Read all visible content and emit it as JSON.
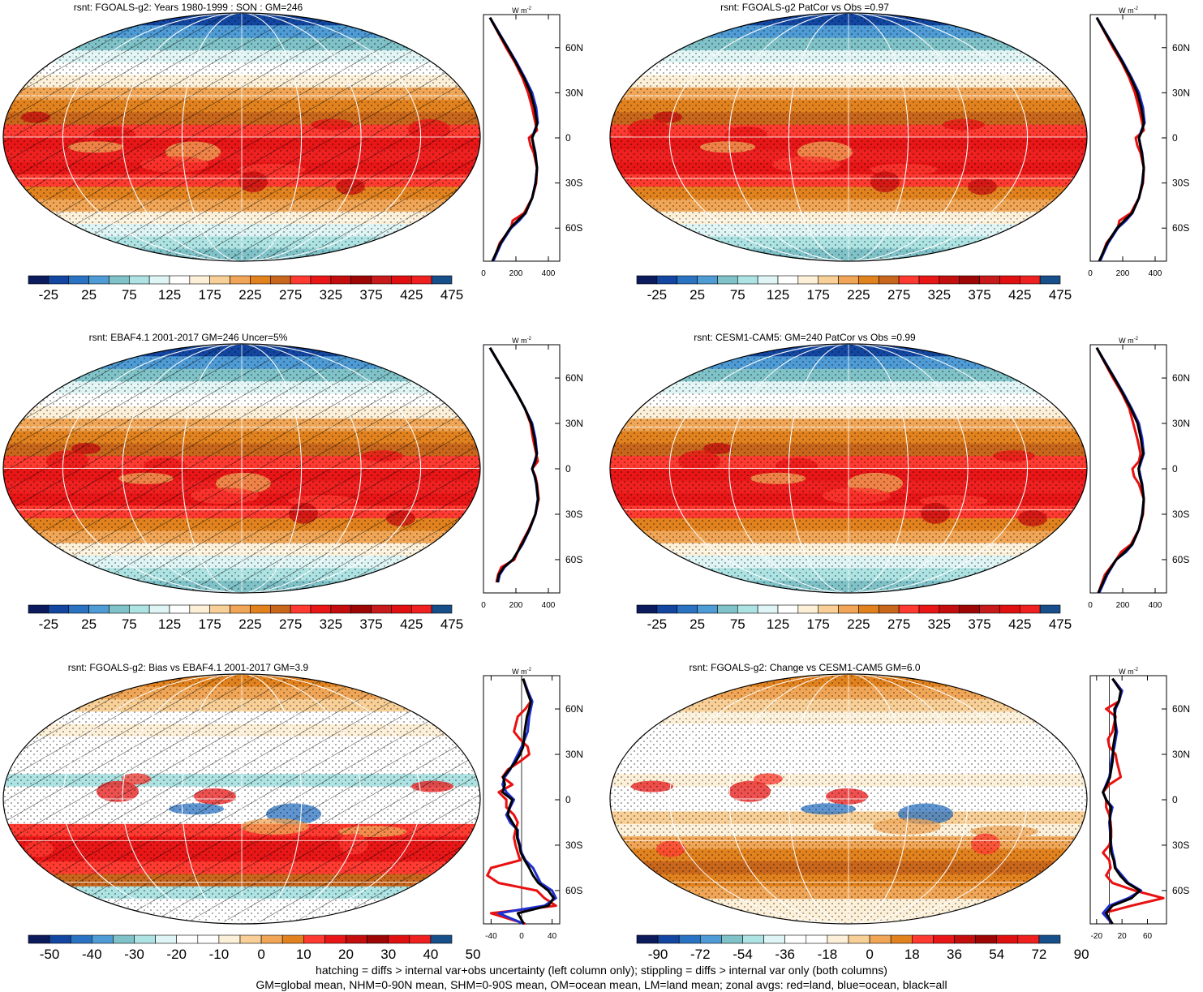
{
  "footnote": {
    "line1": "hatching = diffs > internal var+obs uncertainty (left column only); stippling = diffs > internal var only (both columns)",
    "line2": "GM=global mean, NHM=0-90N mean, SHM=0-90S mean, OM=ocean mean, LM=land mean; zonal avgs: red=land, blue=ocean, black=all"
  },
  "colors": {
    "land": "#e81010",
    "ocean": "#1f2fd0",
    "all": "#000000",
    "abs_palette": [
      "#0c1b5c",
      "#1346a0",
      "#2a72c2",
      "#4e9bd6",
      "#7fc2c8",
      "#aee3e3",
      "#dff4f4",
      "#ffffff",
      "#fdf0d8",
      "#f8cf96",
      "#f0a656",
      "#e1821e",
      "#c8661c",
      "#ff3a30",
      "#e81616",
      "#c40d0d",
      "#9e0606",
      "#c81a1a",
      "#e01010",
      "#ef2020",
      "#174f8a"
    ],
    "bias_palette": [
      "#0c1b5c",
      "#1346a0",
      "#2a72c2",
      "#4e9bd6",
      "#7fc2c8",
      "#aee3e3",
      "#dff4f4",
      "#ffffff",
      "#ffffff",
      "#fdf0d8",
      "#f8cf96",
      "#f0a656",
      "#e1821e",
      "#ff3a30",
      "#e81616",
      "#c40d0d",
      "#9e0606",
      "#e01010",
      "#ef2020",
      "#174f8a"
    ],
    "change_palette": [
      "#0c1b5c",
      "#1346a0",
      "#2a72c2",
      "#4e9bd6",
      "#7fc2c8",
      "#aee3e3",
      "#dff4f4",
      "#ffffff",
      "#ffffff",
      "#fdf0d8",
      "#f8cf96",
      "#f0a656",
      "#e1821e",
      "#ff3a30",
      "#e81616",
      "#c40d0d",
      "#9e0606",
      "#e01010",
      "#ef2020",
      "#174f8a"
    ]
  },
  "chart_data": [
    {
      "type": "heatmap",
      "title": "rsnt: FGOALS-g2: Years 1980-1999 : SON : GM=246",
      "field": "absolute",
      "hatching": true,
      "colorbar_ticks": [
        "-25",
        "25",
        "75",
        "125",
        "175",
        "225",
        "275",
        "325",
        "375",
        "425",
        "475"
      ],
      "zonal": {
        "units": "W m",
        "units_exp": "-2",
        "x_ticks": [
          "0",
          "200",
          "400"
        ],
        "xlim": [
          0,
          470
        ],
        "y_ticks": [
          "60N",
          "30N",
          "0",
          "30S",
          "60S"
        ],
        "ylim": [
          -82,
          82
        ],
        "lat": [
          80,
          70,
          60,
          50,
          40,
          30,
          20,
          10,
          5,
          0,
          -5,
          -10,
          -20,
          -30,
          -40,
          -50,
          -55,
          -60,
          -70,
          -82
        ],
        "series": [
          {
            "role": "land",
            "values": [
              40,
              90,
              140,
              195,
              240,
              275,
              300,
              320,
              330,
              280,
              290,
              310,
              330,
              325,
              300,
              250,
              180,
              170,
              100,
              60
            ]
          },
          {
            "role": "ocean",
            "values": [
              40,
              95,
              150,
              205,
              255,
              300,
              325,
              335,
              315,
              300,
              310,
              320,
              330,
              320,
              300,
              260,
              220,
              170,
              110,
              60
            ]
          },
          {
            "role": "all",
            "values": [
              40,
              92,
              148,
              200,
              250,
              290,
              315,
              330,
              320,
              300,
              308,
              318,
              330,
              322,
              300,
              258,
              210,
              165,
              105,
              55
            ]
          }
        ]
      }
    },
    {
      "type": "heatmap",
      "title": "rsnt: FGOALS-g2 PatCor vs Obs =0.97",
      "field": "absolute",
      "hatching": false,
      "colorbar_ticks": [
        "-25",
        "25",
        "75",
        "125",
        "175",
        "225",
        "275",
        "325",
        "375",
        "425",
        "475"
      ],
      "zonal": {
        "units": "W m",
        "units_exp": "-2",
        "x_ticks": [
          "0",
          "200",
          "400"
        ],
        "xlim": [
          0,
          470
        ],
        "y_ticks": [
          "60N",
          "30N",
          "0",
          "30S",
          "60S"
        ],
        "ylim": [
          -82,
          82
        ],
        "lat": [
          80,
          70,
          60,
          50,
          40,
          30,
          20,
          10,
          5,
          0,
          -5,
          -10,
          -20,
          -30,
          -40,
          -50,
          -55,
          -60,
          -70,
          -82
        ],
        "series": [
          {
            "role": "land",
            "values": [
              40,
              90,
              140,
              195,
              240,
              275,
              300,
              320,
              330,
              280,
              290,
              310,
              330,
              325,
              300,
              250,
              180,
              170,
              100,
              60
            ]
          },
          {
            "role": "ocean",
            "values": [
              40,
              95,
              150,
              205,
              255,
              300,
              325,
              335,
              315,
              300,
              310,
              320,
              330,
              320,
              300,
              260,
              220,
              170,
              110,
              60
            ]
          },
          {
            "role": "all",
            "values": [
              40,
              92,
              148,
              200,
              250,
              290,
              315,
              330,
              320,
              300,
              308,
              318,
              330,
              322,
              300,
              258,
              210,
              165,
              105,
              55
            ]
          }
        ]
      }
    },
    {
      "type": "heatmap",
      "title": "rsnt: EBAF4.1 2001-2017 GM=246 Uncer=5%",
      "field": "absolute",
      "hatching": true,
      "colorbar_ticks": [
        "-25",
        "25",
        "75",
        "125",
        "175",
        "225",
        "275",
        "325",
        "375",
        "425",
        "475"
      ],
      "zonal": {
        "units": "W m",
        "units_exp": "-2",
        "x_ticks": [
          "0",
          "200",
          "400"
        ],
        "xlim": [
          0,
          470
        ],
        "y_ticks": [
          "60N",
          "30N",
          "0",
          "30S",
          "60S"
        ],
        "ylim": [
          -82,
          82
        ],
        "lat": [
          80,
          70,
          60,
          50,
          40,
          30,
          20,
          10,
          5,
          0,
          -5,
          -10,
          -20,
          -30,
          -40,
          -50,
          -60,
          -65,
          -70,
          -75
        ],
        "series": [
          {
            "role": "land",
            "values": [
              40,
              95,
              150,
              205,
              255,
              290,
              305,
              325,
              335,
              300,
              320,
              330,
              340,
              320,
              280,
              230,
              190,
              110,
              90,
              80
            ]
          },
          {
            "role": "ocean",
            "values": [
              40,
              95,
              150,
              205,
              255,
              300,
              320,
              330,
              315,
              300,
              315,
              325,
              335,
              320,
              285,
              240,
              180,
              130,
              100,
              90
            ]
          },
          {
            "role": "all",
            "values": [
              40,
              95,
              150,
              205,
              255,
              295,
              315,
              328,
              320,
              300,
              317,
              327,
              337,
              320,
              283,
              236,
              182,
              125,
              95,
              85
            ]
          }
        ]
      }
    },
    {
      "type": "heatmap",
      "title": "rsnt: CESM1-CAM5: GM=240 PatCor vs Obs =0.99",
      "field": "absolute",
      "hatching": false,
      "colorbar_ticks": [
        "-25",
        "25",
        "75",
        "125",
        "175",
        "225",
        "275",
        "325",
        "375",
        "425",
        "475"
      ],
      "zonal": {
        "units": "W m",
        "units_exp": "-2",
        "x_ticks": [
          "0",
          "200",
          "400"
        ],
        "xlim": [
          0,
          470
        ],
        "y_ticks": [
          "60N",
          "30N",
          "0",
          "30S",
          "60S"
        ],
        "ylim": [
          -82,
          82
        ],
        "lat": [
          80,
          70,
          60,
          50,
          40,
          30,
          20,
          10,
          5,
          0,
          -5,
          -10,
          -20,
          -30,
          -40,
          -50,
          -55,
          -60,
          -70,
          -82
        ],
        "series": [
          {
            "role": "land",
            "values": [
              40,
              90,
              140,
              195,
              240,
              265,
              290,
              310,
              300,
              260,
              270,
              300,
              330,
              325,
              300,
              250,
              190,
              160,
              90,
              50
            ]
          },
          {
            "role": "ocean",
            "values": [
              40,
              95,
              150,
              205,
              255,
              300,
              320,
              330,
              315,
              300,
              310,
              320,
              330,
              320,
              300,
              260,
              220,
              160,
              105,
              55
            ]
          },
          {
            "role": "all",
            "values": [
              40,
              92,
              148,
              200,
              250,
              292,
              312,
              326,
              310,
              298,
              305,
              318,
              330,
              322,
              300,
              258,
              212,
              160,
              100,
              50
            ]
          }
        ]
      }
    },
    {
      "type": "heatmap",
      "title": "rsnt: FGOALS-g2: Bias vs EBAF4.1 2001-2017  GM=3.9",
      "field": "bias",
      "hatching": true,
      "colorbar_ticks": [
        "-50",
        "-40",
        "-30",
        "-20",
        "-10",
        "0",
        "10",
        "20",
        "30",
        "40",
        "50"
      ],
      "zonal": {
        "units": "W m",
        "units_exp": "-2",
        "x_ticks": [
          "-40",
          "0",
          "40"
        ],
        "xlim": [
          -50,
          50
        ],
        "y_ticks": [
          "60N",
          "30N",
          "0",
          "30S",
          "60S"
        ],
        "ylim": [
          -82,
          82
        ],
        "lat": [
          80,
          72,
          65,
          60,
          55,
          45,
          40,
          35,
          30,
          25,
          20,
          15,
          10,
          5,
          0,
          -5,
          -10,
          -15,
          -20,
          -25,
          -30,
          -35,
          -40,
          -45,
          -50,
          -55,
          -60,
          -65,
          -70,
          -75,
          -82
        ],
        "series": [
          {
            "role": "land",
            "values": [
              2,
              8,
              12,
              5,
              -5,
              -10,
              -2,
              8,
              10,
              -3,
              -18,
              -25,
              -12,
              -30,
              -20,
              -20,
              -10,
              -5,
              -8,
              -10,
              -8,
              -5,
              -2,
              -40,
              -45,
              -30,
              20,
              30,
              45,
              -40,
              5
            ]
          },
          {
            "role": "ocean",
            "values": [
              2,
              8,
              14,
              12,
              10,
              8,
              4,
              0,
              -5,
              -10,
              -15,
              -22,
              -25,
              -20,
              -10,
              -15,
              -20,
              -15,
              -5,
              -5,
              -2,
              0,
              5,
              15,
              20,
              25,
              40,
              45,
              30,
              -30,
              3
            ]
          },
          {
            "role": "all",
            "values": [
              2,
              7,
              12,
              10,
              7,
              4,
              3,
              2,
              -2,
              -8,
              -16,
              -24,
              -22,
              -25,
              -12,
              -16,
              -18,
              -12,
              -6,
              -6,
              -3,
              -1,
              4,
              10,
              15,
              22,
              35,
              42,
              35,
              -5,
              3
            ]
          }
        ]
      }
    },
    {
      "type": "heatmap",
      "title": "rsnt: FGOALS-g2: Change vs CESM1-CAM5 GM=6.0",
      "field": "change",
      "hatching": false,
      "colorbar_ticks": [
        "-90",
        "-72",
        "-54",
        "-36",
        "-18",
        "0",
        "18",
        "36",
        "54",
        "72",
        "90"
      ],
      "zonal": {
        "units": "W m",
        "units_exp": "-2",
        "x_ticks": [
          "-20",
          "20",
          "60"
        ],
        "xlim": [
          -30,
          90
        ],
        "y_ticks": [
          "60N",
          "30N",
          "0",
          "30S",
          "60S"
        ],
        "ylim": [
          -82,
          82
        ],
        "lat": [
          80,
          72,
          65,
          60,
          55,
          45,
          40,
          35,
          30,
          25,
          20,
          15,
          10,
          5,
          0,
          -5,
          -10,
          -15,
          -20,
          -25,
          -30,
          -35,
          -40,
          -45,
          -50,
          -55,
          -60,
          -65,
          -70,
          -75,
          -82
        ],
        "series": [
          {
            "role": "land",
            "values": [
              5,
              20,
              15,
              -5,
              10,
              5,
              -2,
              0,
              10,
              12,
              15,
              18,
              0,
              -10,
              -5,
              -5,
              0,
              2,
              3,
              3,
              0,
              -10,
              0,
              2,
              -5,
              5,
              40,
              85,
              35,
              -10,
              5
            ]
          },
          {
            "role": "ocean",
            "values": [
              5,
              20,
              15,
              10,
              8,
              12,
              10,
              8,
              5,
              3,
              2,
              0,
              -5,
              -10,
              -5,
              5,
              2,
              0,
              1,
              2,
              3,
              5,
              8,
              10,
              20,
              30,
              50,
              30,
              0,
              -10,
              5
            ]
          },
          {
            "role": "all",
            "values": [
              5,
              18,
              15,
              8,
              9,
              10,
              8,
              6,
              6,
              5,
              3,
              1,
              -4,
              -10,
              -5,
              3,
              1,
              1,
              2,
              2,
              2,
              3,
              7,
              9,
              17,
              28,
              48,
              35,
              5,
              -5,
              5
            ]
          }
        ]
      }
    }
  ]
}
